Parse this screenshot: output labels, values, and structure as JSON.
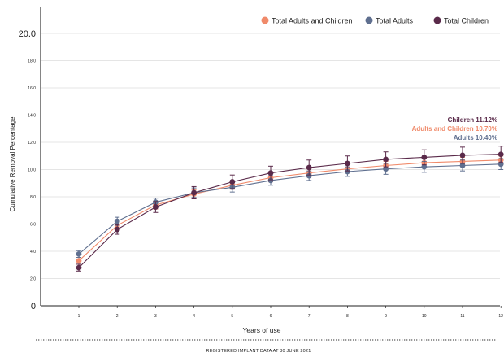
{
  "chart_data": {
    "type": "line",
    "xlabel": "Years of use",
    "ylabel": "Cumulative Removal Percentage",
    "x": [
      1,
      2,
      3,
      4,
      5,
      6,
      7,
      8,
      9,
      10,
      11,
      12
    ],
    "x_tick_labels": [
      "1",
      "2",
      "3",
      "4",
      "5",
      "6",
      "7",
      "8",
      "9",
      "10",
      "11",
      "12"
    ],
    "y_ticks": [
      0,
      2,
      4,
      6,
      8,
      10,
      12,
      14,
      16,
      18,
      20
    ],
    "y_tick_labels": [
      "0",
      "2.0",
      "4.0",
      "6.0",
      "8.0",
      "10.0",
      "12.0",
      "14.0",
      "16.0",
      "18.0",
      "20.0"
    ],
    "ylim": [
      0,
      20
    ],
    "grid": true,
    "legend_position": "top-right",
    "series": [
      {
        "name": "Total Adults and Children",
        "color": "#f08a6a",
        "values": [
          3.3,
          5.9,
          7.4,
          8.2,
          8.85,
          9.4,
          9.75,
          10.05,
          10.3,
          10.5,
          10.6,
          10.7
        ],
        "error": [
          0.25,
          0.25,
          0.3,
          0.3,
          0.3,
          0.3,
          0.3,
          0.3,
          0.3,
          0.3,
          0.3,
          0.3
        ]
      },
      {
        "name": "Total Adults",
        "color": "#5f6f8f",
        "values": [
          3.8,
          6.2,
          7.6,
          8.3,
          8.7,
          9.2,
          9.55,
          9.85,
          10.05,
          10.2,
          10.3,
          10.4
        ],
        "error": [
          0.25,
          0.3,
          0.3,
          0.35,
          0.35,
          0.35,
          0.35,
          0.35,
          0.4,
          0.4,
          0.4,
          0.4
        ]
      },
      {
        "name": "Total Children",
        "color": "#5a2a4a",
        "values": [
          2.8,
          5.6,
          7.25,
          8.3,
          9.1,
          9.75,
          10.15,
          10.45,
          10.75,
          10.9,
          11.05,
          11.12
        ],
        "error": [
          0.25,
          0.35,
          0.4,
          0.45,
          0.5,
          0.5,
          0.55,
          0.55,
          0.55,
          0.55,
          0.6,
          0.6
        ]
      }
    ],
    "annotations": [
      {
        "text": "Children 11.12%",
        "color": "#5a2a4a"
      },
      {
        "text": "Adults and Children 10.70%",
        "color": "#f08a6a"
      },
      {
        "text": "Adults 10.40%",
        "color": "#5f6f8f"
      }
    ],
    "footer": "REGISTERED IMPLANT DATA AT 30 JUNE 2021"
  }
}
